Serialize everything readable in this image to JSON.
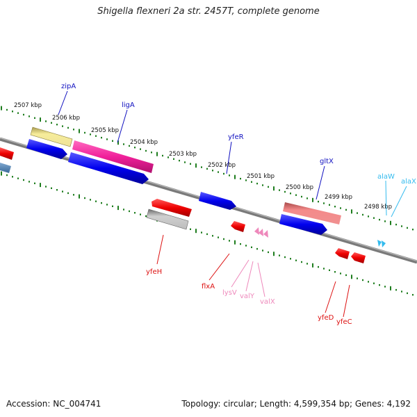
{
  "header": {
    "title": "Shigella flexneri 2a str. 2457T, complete genome"
  },
  "footer": {
    "accession": "Accession: NC_004741",
    "summary": "Topology: circular; Length: 4,599,354 bp; Genes: 4,192"
  },
  "colors": {
    "backbone": "#808080",
    "tick": "#1e7d1e",
    "forward_gene": "#0000ee",
    "reverse_gene": "#ee0000",
    "trna_forward": "#33bbee",
    "trna_reverse": "#ee88bb",
    "gene_label": "#1010c0",
    "gene_label_reverse": "#dd1111"
  },
  "kbp_labels": [
    "2507 kbp",
    "2506 kbp",
    "2505 kbp",
    "2504 kbp",
    "2503 kbp",
    "2502 kbp",
    "2501 kbp",
    "2500 kbp",
    "2499 kbp",
    "2498 kbp"
  ],
  "genes": [
    {
      "name": "zipA",
      "strand": "forward",
      "track": "cds"
    },
    {
      "name": "ligA",
      "strand": "forward",
      "track": "cds"
    },
    {
      "name": "yfeR",
      "strand": "forward",
      "track": "cds"
    },
    {
      "name": "gltX",
      "strand": "forward",
      "track": "cds"
    },
    {
      "name": "alaW",
      "strand": "forward",
      "track": "trna"
    },
    {
      "name": "alaX",
      "strand": "forward",
      "track": "trna"
    },
    {
      "name": "yfeH",
      "strand": "reverse",
      "track": "cds"
    },
    {
      "name": "flxA",
      "strand": "reverse",
      "track": "cds"
    },
    {
      "name": "lysV",
      "strand": "reverse",
      "track": "trna"
    },
    {
      "name": "valY",
      "strand": "reverse",
      "track": "trna"
    },
    {
      "name": "valX",
      "strand": "reverse",
      "track": "trna"
    },
    {
      "name": "yfeD",
      "strand": "reverse",
      "track": "cds"
    },
    {
      "name": "yfeC",
      "strand": "reverse",
      "track": "cds"
    }
  ]
}
